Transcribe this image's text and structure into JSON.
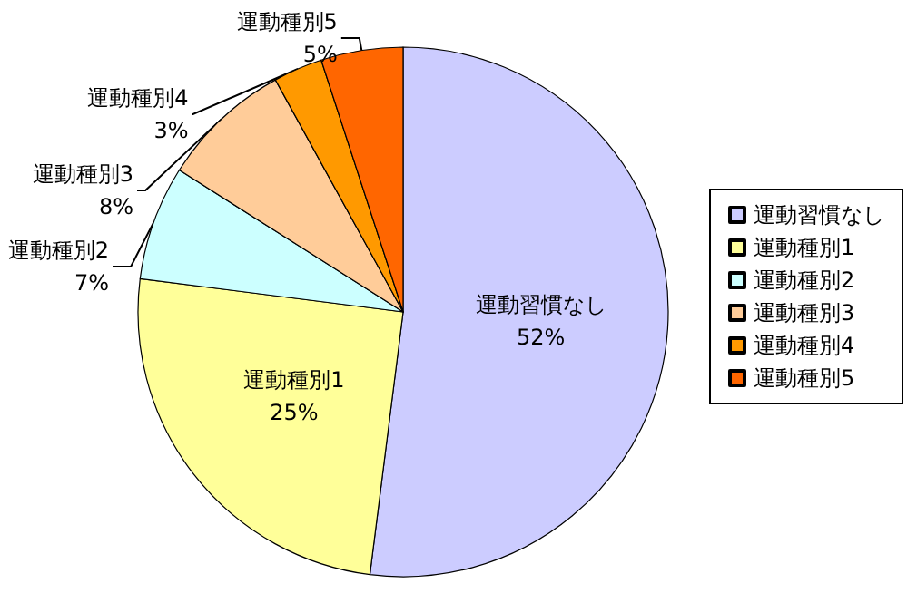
{
  "chart_data": {
    "type": "pie",
    "categories": [
      "運動習慣なし",
      "運動種別1",
      "運動種別2",
      "運動種別3",
      "運動種別4",
      "運動種別5"
    ],
    "values": [
      52,
      25,
      7,
      8,
      3,
      5
    ],
    "value_labels": [
      "52%",
      "25%",
      "7%",
      "8%",
      "3%",
      "5%"
    ],
    "colors": [
      "#ccccff",
      "#ffff99",
      "#ccffff",
      "#ffcc99",
      "#ff9900",
      "#ff6600"
    ],
    "legend": "right"
  }
}
